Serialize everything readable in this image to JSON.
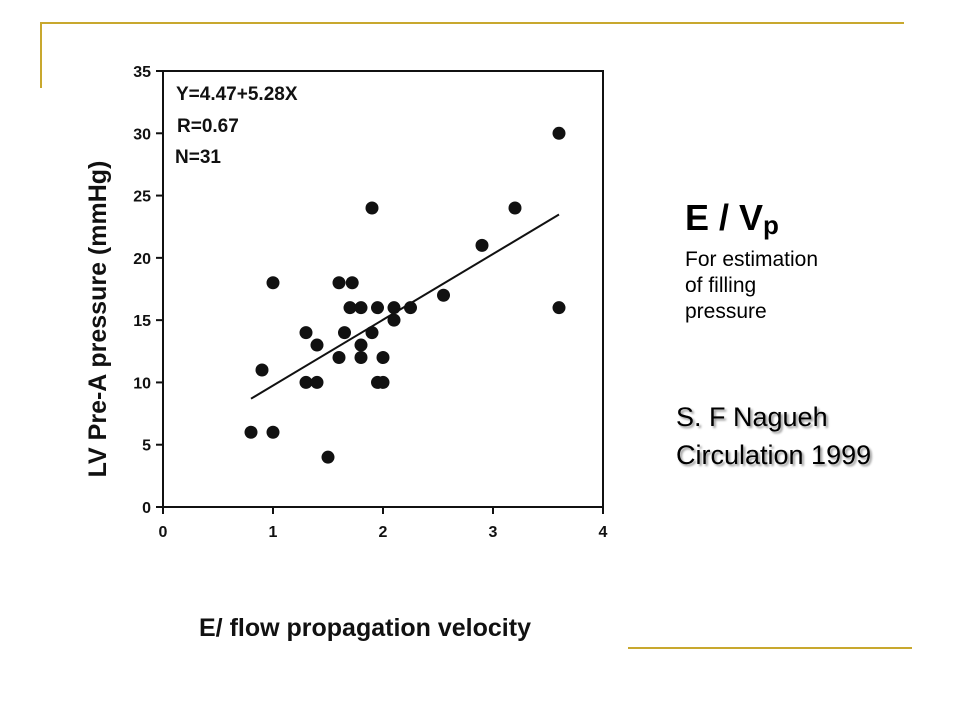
{
  "slide": {
    "heading_main": "E / V",
    "heading_sub": "p",
    "description": [
      "For estimation",
      "of filling",
      "pressure"
    ],
    "citation": [
      "S. F Nagueh",
      "Circulation 1999"
    ]
  },
  "chart_data": {
    "type": "scatter",
    "xlabel": "E/ flow propagation velocity",
    "ylabel": "LV Pre-A pressure (mmHg)",
    "xlim": [
      0,
      4
    ],
    "ylim": [
      0,
      35
    ],
    "xticks": [
      "0",
      "1",
      "2",
      "3",
      "4"
    ],
    "yticks": [
      "0",
      "5",
      "10",
      "15",
      "20",
      "25",
      "30",
      "35"
    ],
    "annotations": [
      "Y=4.47+5.28X",
      "R=0.67",
      "N=31"
    ],
    "regression": {
      "intercept": 4.47,
      "slope": 5.28,
      "x_range": [
        0.8,
        3.6
      ]
    },
    "points": [
      {
        "x": 0.8,
        "y": 6
      },
      {
        "x": 0.9,
        "y": 11
      },
      {
        "x": 1.0,
        "y": 6
      },
      {
        "x": 1.0,
        "y": 18
      },
      {
        "x": 1.3,
        "y": 10
      },
      {
        "x": 1.3,
        "y": 14
      },
      {
        "x": 1.4,
        "y": 10
      },
      {
        "x": 1.4,
        "y": 13
      },
      {
        "x": 1.5,
        "y": 4
      },
      {
        "x": 1.6,
        "y": 12
      },
      {
        "x": 1.6,
        "y": 18
      },
      {
        "x": 1.65,
        "y": 14
      },
      {
        "x": 1.7,
        "y": 16
      },
      {
        "x": 1.72,
        "y": 18
      },
      {
        "x": 1.8,
        "y": 16
      },
      {
        "x": 1.8,
        "y": 13
      },
      {
        "x": 1.8,
        "y": 12
      },
      {
        "x": 1.9,
        "y": 14
      },
      {
        "x": 1.9,
        "y": 24
      },
      {
        "x": 1.95,
        "y": 10
      },
      {
        "x": 1.95,
        "y": 16
      },
      {
        "x": 2.0,
        "y": 10
      },
      {
        "x": 2.0,
        "y": 12
      },
      {
        "x": 2.1,
        "y": 15
      },
      {
        "x": 2.1,
        "y": 16
      },
      {
        "x": 2.25,
        "y": 16
      },
      {
        "x": 2.55,
        "y": 17
      },
      {
        "x": 2.9,
        "y": 21
      },
      {
        "x": 3.2,
        "y": 24
      },
      {
        "x": 3.6,
        "y": 30
      },
      {
        "x": 3.6,
        "y": 16
      }
    ]
  }
}
